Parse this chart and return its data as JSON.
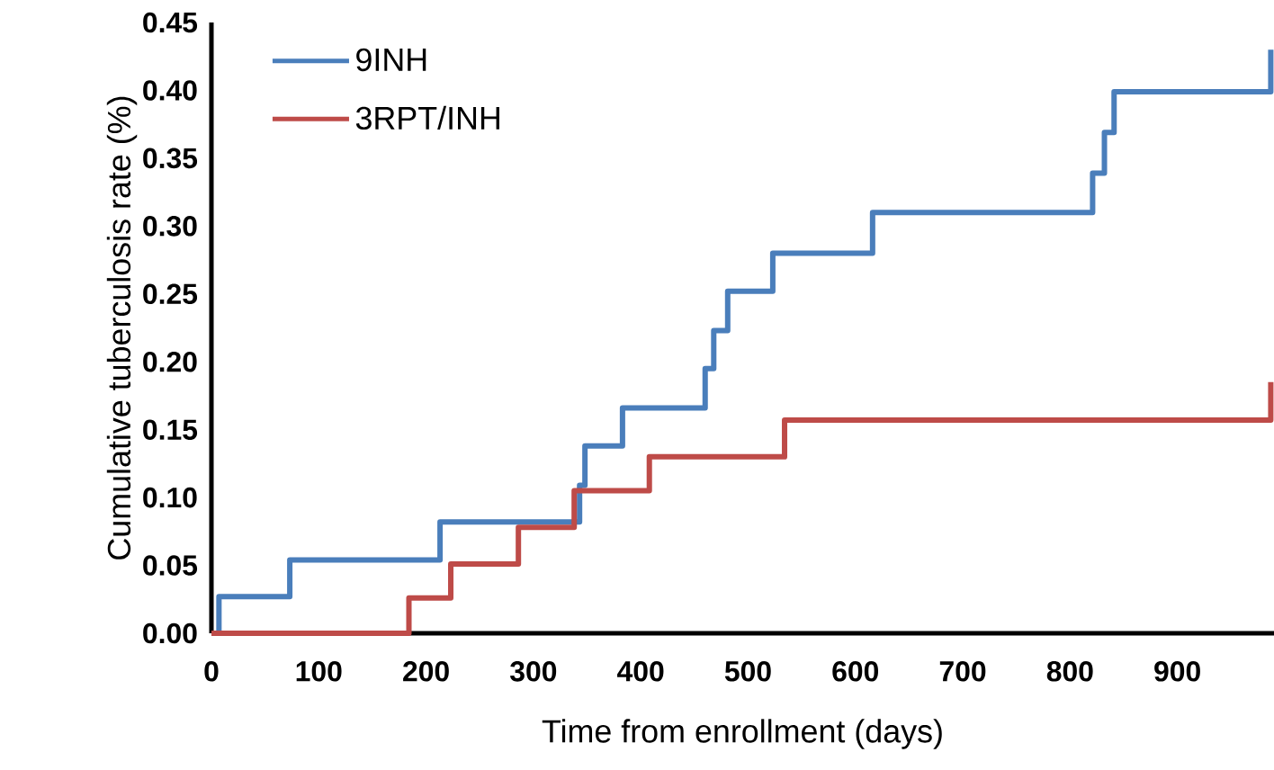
{
  "chart_data": {
    "type": "step",
    "xlabel": "Time from enrollment (days)",
    "ylabel": "Cumulative tuberculosis rate (%)",
    "xlim": [
      0,
      990
    ],
    "xticks": [
      0,
      100,
      200,
      300,
      400,
      500,
      600,
      700,
      800,
      900
    ],
    "ylim": [
      0,
      0.45
    ],
    "yticks": [
      {
        "value": 0,
        "label": "0.00"
      },
      {
        "value": 0.05,
        "label": "0.05"
      },
      {
        "value": 0.1,
        "label": "0.10"
      },
      {
        "value": 0.15,
        "label": "0.15"
      },
      {
        "value": 0.2,
        "label": "0.20"
      },
      {
        "value": 0.25,
        "label": "0.25"
      },
      {
        "value": 0.3,
        "label": "0.30"
      },
      {
        "value": 0.35,
        "label": "0.35"
      },
      {
        "value": 0.4,
        "label": "0.40"
      },
      {
        "value": 0.45,
        "label": "0.45"
      }
    ],
    "legend": "top left",
    "series": [
      {
        "name": "9INH",
        "color": "#4a7ebb",
        "x": [
          0,
          7,
          73,
          213,
          343,
          348,
          383,
          460,
          468,
          481,
          523,
          616,
          821,
          832,
          841,
          987
        ],
        "values": [
          0,
          0.027,
          0.054,
          0.082,
          0.109,
          0.138,
          0.166,
          0.195,
          0.223,
          0.252,
          0.28,
          0.31,
          0.339,
          0.369,
          0.399,
          0.43
        ]
      },
      {
        "name": "3RPT/INH",
        "color": "#be4b48",
        "x": [
          0,
          184,
          223,
          286,
          338,
          408,
          534,
          987
        ],
        "values": [
          0,
          0.026,
          0.051,
          0.078,
          0.105,
          0.13,
          0.157,
          0.185
        ]
      }
    ]
  }
}
